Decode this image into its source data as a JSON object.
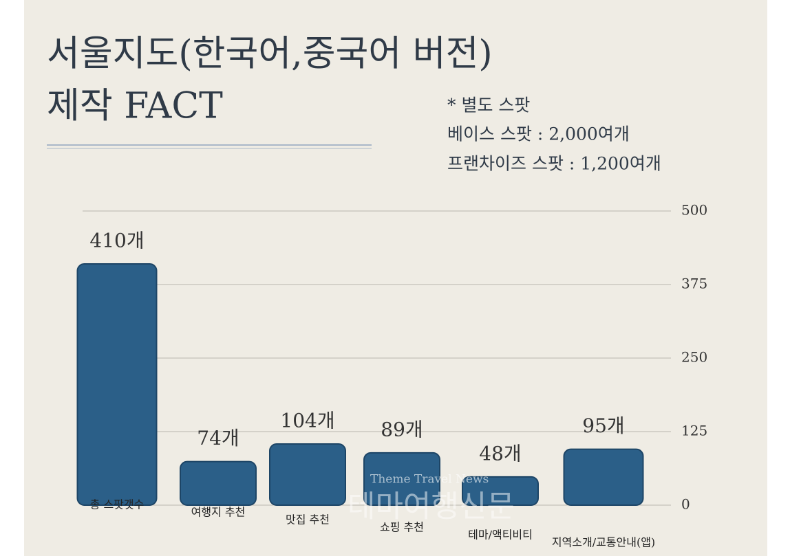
{
  "chart_data": {
    "type": "bar",
    "title_lines": [
      "서울지도(한국어,중국어 버전)",
      "제작 FACT"
    ],
    "notes": [
      "* 별도 스팟",
      "베이스 스팟 : 2,000여개",
      "프랜차이즈 스팟 : 1,200여개"
    ],
    "categories": [
      "총 스팟갯수",
      "여행지 추천",
      "맛집 추천",
      "쇼핑 추천",
      "테마/액티비티",
      "지역소개/교통안내(앱)"
    ],
    "values": [
      410,
      74,
      104,
      89,
      48,
      95
    ],
    "value_labels": [
      "410개",
      "74개",
      "104개",
      "89개",
      "48개",
      "95개"
    ],
    "color": "#2b5f88",
    "ylim": [
      0,
      500
    ],
    "yticks": [
      0,
      125,
      250,
      375,
      500
    ],
    "grid": true,
    "watermark": [
      "Theme Travel News",
      "테마여행신문"
    ]
  }
}
